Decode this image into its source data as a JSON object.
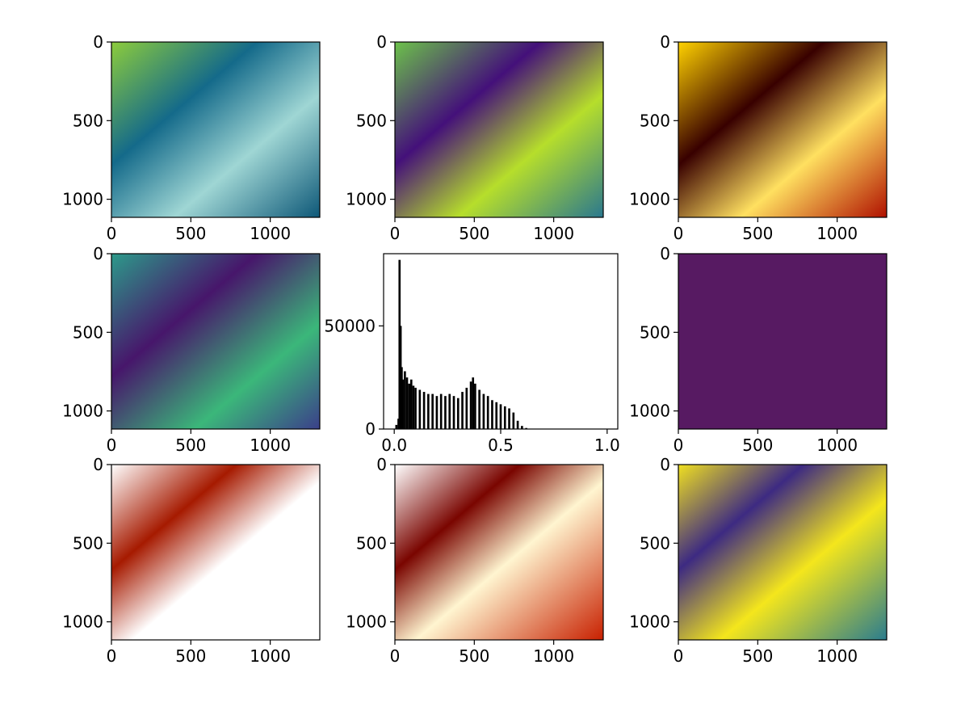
{
  "chart_data": [
    {
      "type": "image",
      "panel": 1,
      "colormap": "original-rgb",
      "x_ticks": [
        "0",
        "500",
        "1000"
      ],
      "y_ticks": [
        "0",
        "500",
        "1000"
      ],
      "xlim": [
        0,
        1312
      ],
      "ylim": [
        1115,
        0
      ]
    },
    {
      "type": "image",
      "panel": 2,
      "colormap": "viridis",
      "x_ticks": [
        "0",
        "500",
        "1000"
      ],
      "y_ticks": [
        "0",
        "500",
        "1000"
      ],
      "xlim": [
        0,
        1312
      ],
      "ylim": [
        1115,
        0
      ]
    },
    {
      "type": "image",
      "panel": 3,
      "colormap": "hot",
      "x_ticks": [
        "0",
        "500",
        "1000"
      ],
      "y_ticks": [
        "0",
        "500",
        "1000"
      ],
      "xlim": [
        0,
        1312
      ],
      "ylim": [
        1115,
        0
      ]
    },
    {
      "type": "image",
      "panel": 4,
      "colormap": "viridis",
      "x_ticks": [
        "0",
        "500",
        "1000"
      ],
      "y_ticks": [
        "0",
        "500",
        "1000"
      ],
      "xlim": [
        0,
        1312
      ],
      "ylim": [
        1115,
        0
      ]
    },
    {
      "type": "bar",
      "panel": 5,
      "subtype": "histogram",
      "color": "#000000",
      "x_ticks": [
        "0.0",
        "0.5",
        "1.0"
      ],
      "y_ticks": [
        "0",
        "50000"
      ],
      "xlim": [
        -0.05,
        1.05
      ],
      "ylim": [
        0,
        85000
      ],
      "bins": [
        {
          "x": 0.01,
          "y": 2000
        },
        {
          "x": 0.02,
          "y": 5000
        },
        {
          "x": 0.025,
          "y": 82000
        },
        {
          "x": 0.03,
          "y": 50000
        },
        {
          "x": 0.035,
          "y": 30000
        },
        {
          "x": 0.04,
          "y": 24000
        },
        {
          "x": 0.05,
          "y": 28000
        },
        {
          "x": 0.06,
          "y": 25000
        },
        {
          "x": 0.07,
          "y": 22000
        },
        {
          "x": 0.08,
          "y": 24000
        },
        {
          "x": 0.09,
          "y": 21000
        },
        {
          "x": 0.1,
          "y": 20000
        },
        {
          "x": 0.12,
          "y": 19000
        },
        {
          "x": 0.14,
          "y": 18000
        },
        {
          "x": 0.16,
          "y": 17000
        },
        {
          "x": 0.18,
          "y": 17000
        },
        {
          "x": 0.2,
          "y": 16000
        },
        {
          "x": 0.22,
          "y": 17000
        },
        {
          "x": 0.24,
          "y": 16000
        },
        {
          "x": 0.26,
          "y": 17000
        },
        {
          "x": 0.28,
          "y": 16000
        },
        {
          "x": 0.3,
          "y": 15000
        },
        {
          "x": 0.32,
          "y": 18000
        },
        {
          "x": 0.34,
          "y": 20000
        },
        {
          "x": 0.36,
          "y": 23000
        },
        {
          "x": 0.37,
          "y": 25000
        },
        {
          "x": 0.38,
          "y": 22000
        },
        {
          "x": 0.4,
          "y": 19000
        },
        {
          "x": 0.42,
          "y": 17000
        },
        {
          "x": 0.44,
          "y": 16000
        },
        {
          "x": 0.46,
          "y": 14000
        },
        {
          "x": 0.48,
          "y": 13000
        },
        {
          "x": 0.5,
          "y": 12000
        },
        {
          "x": 0.52,
          "y": 11000
        },
        {
          "x": 0.54,
          "y": 10000
        },
        {
          "x": 0.56,
          "y": 8000
        },
        {
          "x": 0.58,
          "y": 4000
        },
        {
          "x": 0.6,
          "y": 1500
        },
        {
          "x": 0.62,
          "y": 500
        }
      ]
    },
    {
      "type": "image",
      "panel": 6,
      "colormap": "viridis-uniform",
      "fill_color": "#571a62",
      "x_ticks": [
        "0",
        "500",
        "1000"
      ],
      "y_ticks": [
        "0",
        "500",
        "1000"
      ],
      "xlim": [
        0,
        1312
      ],
      "ylim": [
        1115,
        0
      ]
    },
    {
      "type": "image",
      "panel": 7,
      "colormap": "hot-clipped",
      "x_ticks": [
        "0",
        "500",
        "1000"
      ],
      "y_ticks": [
        "0",
        "500",
        "1000"
      ],
      "xlim": [
        0,
        1312
      ],
      "ylim": [
        1115,
        0
      ]
    },
    {
      "type": "image",
      "panel": 8,
      "colormap": "hot-clipped",
      "x_ticks": [
        "0",
        "500",
        "1000"
      ],
      "y_ticks": [
        "0",
        "500",
        "1000"
      ],
      "xlim": [
        0,
        1312
      ],
      "ylim": [
        1115,
        0
      ]
    },
    {
      "type": "image",
      "panel": 9,
      "colormap": "viridis-equalized",
      "x_ticks": [
        "0",
        "500",
        "1000"
      ],
      "y_ticks": [
        "0",
        "500",
        "1000"
      ],
      "xlim": [
        0,
        1312
      ],
      "ylim": [
        1115,
        0
      ]
    }
  ]
}
